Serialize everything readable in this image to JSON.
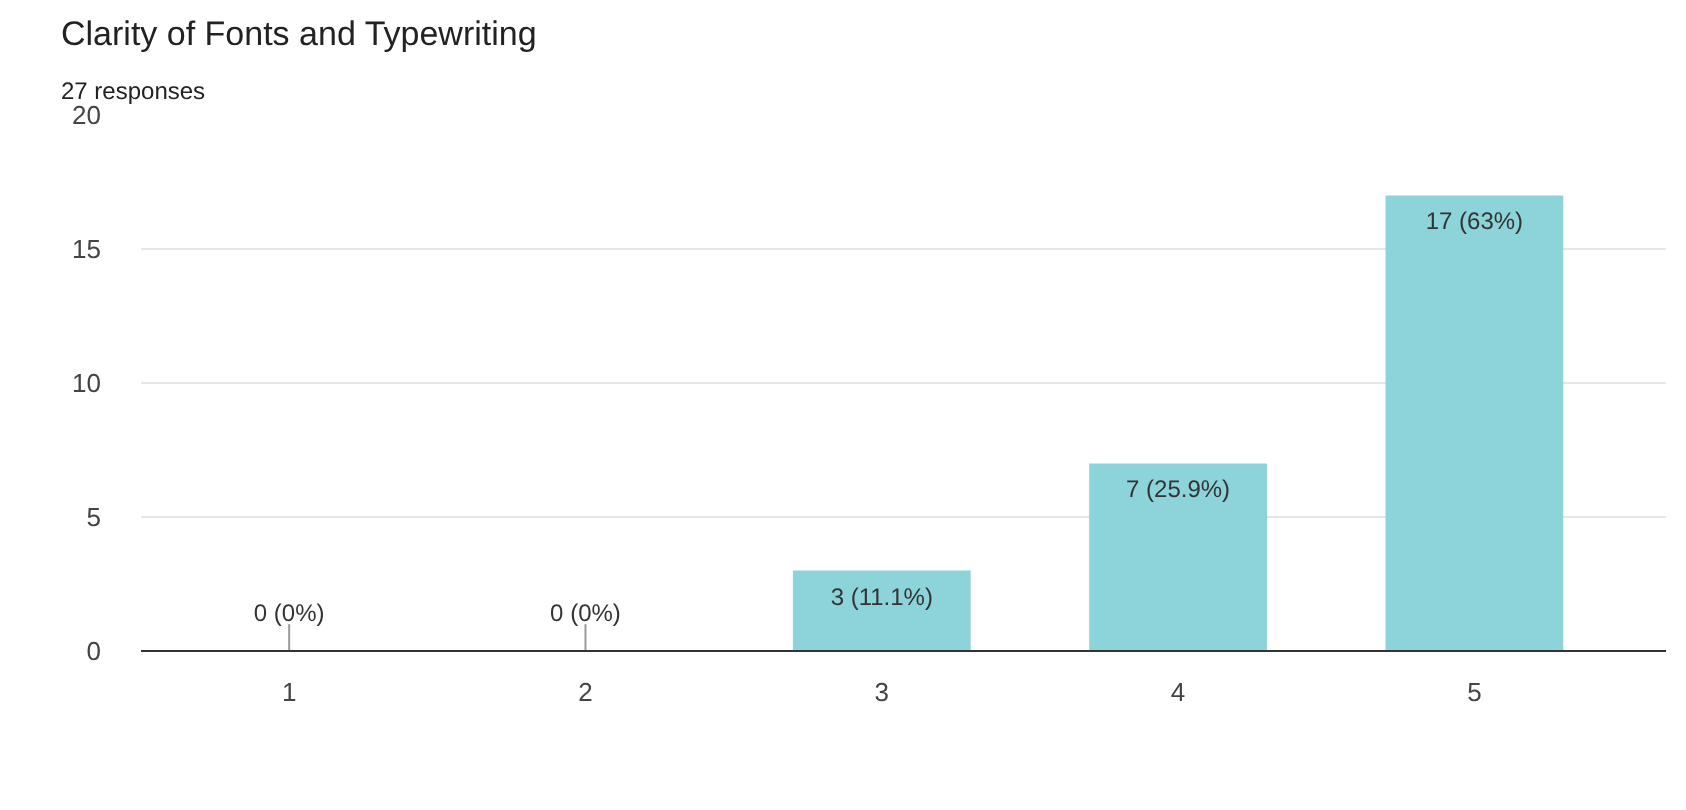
{
  "chart_data": {
    "type": "bar",
    "title": "Clarity of Fonts and Typewriting",
    "subtitle": "27 responses",
    "categories": [
      "1",
      "2",
      "3",
      "4",
      "5"
    ],
    "values": [
      0,
      0,
      3,
      7,
      17
    ],
    "color": "#8dd3da",
    "value_labels": [
      "0 (0%)",
      "0 (0%)",
      "3 (11.1%)",
      "7 (25.9%)",
      "17 (63%)"
    ],
    "ylim": [
      0,
      20
    ],
    "yticks": [
      0,
      5,
      10,
      15,
      20
    ],
    "grid": "y"
  }
}
